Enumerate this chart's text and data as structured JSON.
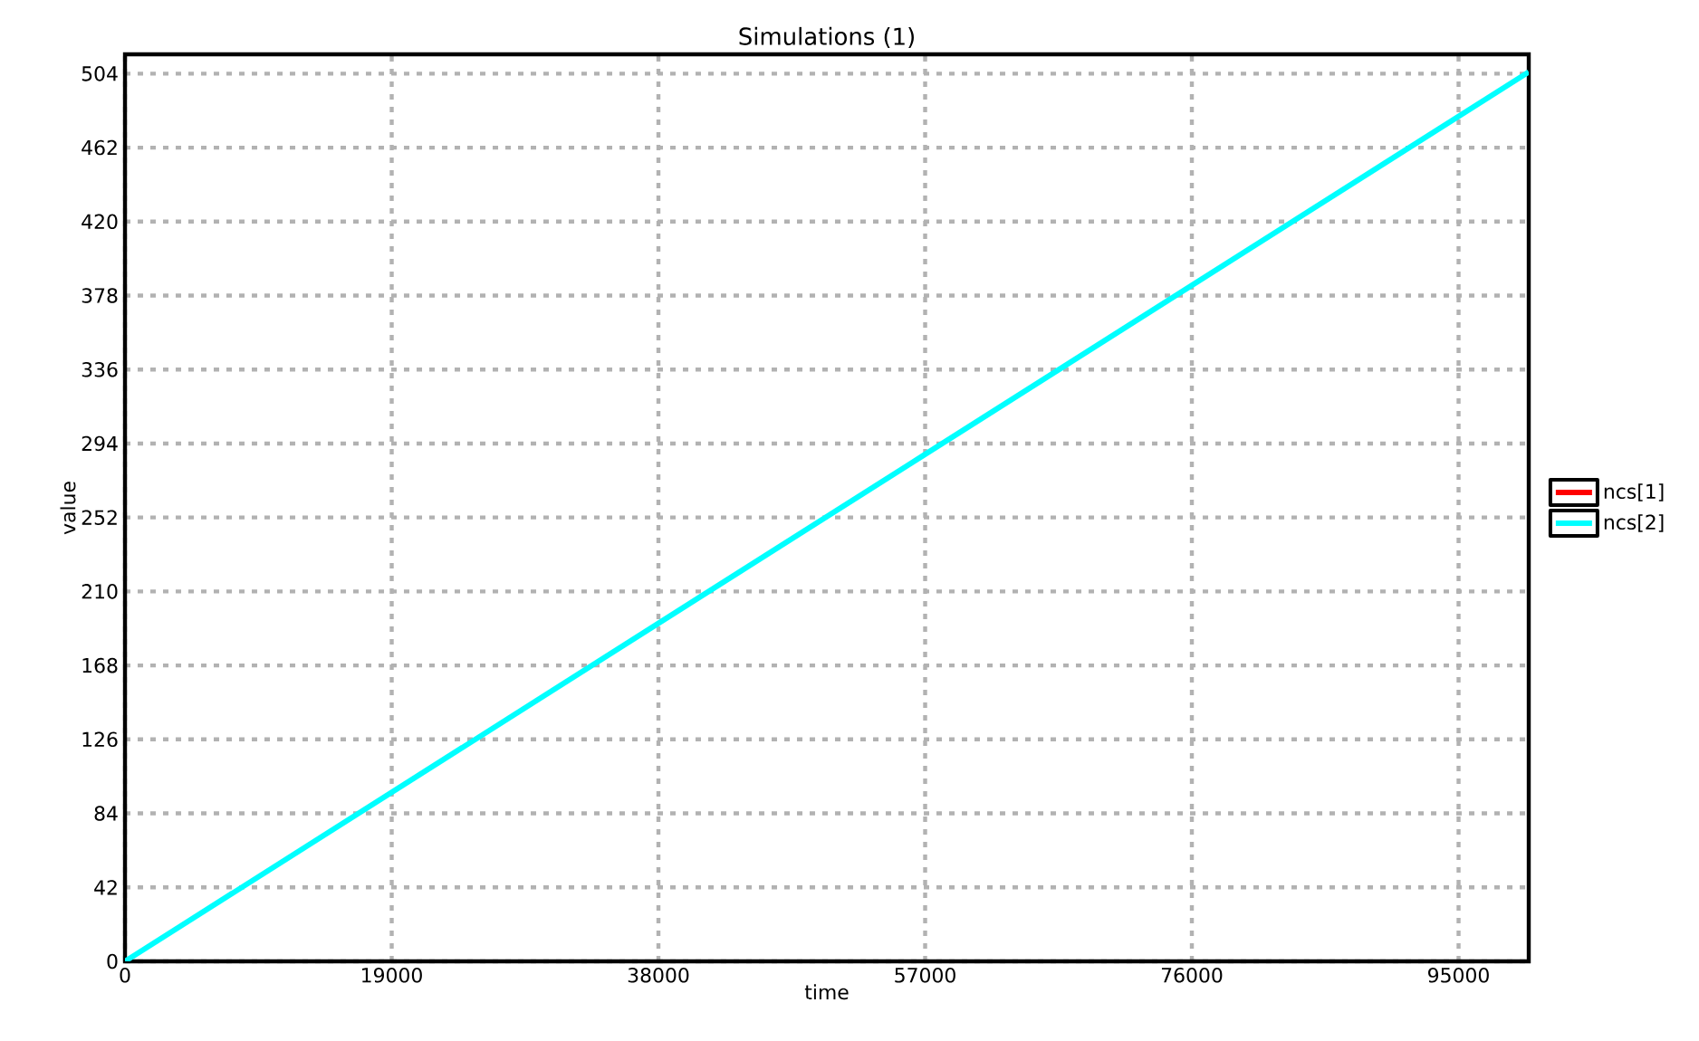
{
  "chart_data": {
    "type": "line",
    "title": "Simulations (1)",
    "xlabel": "time",
    "ylabel": "value",
    "x": [
      0,
      100000
    ],
    "series": [
      {
        "name": "ncs[1]",
        "color": "#ff0000",
        "values": [
          null,
          null
        ]
      },
      {
        "name": "ncs[2]",
        "color": "#00ffff",
        "values": [
          0,
          505
        ]
      }
    ],
    "xlim": [
      0,
      100000
    ],
    "ylim": [
      0,
      515
    ],
    "xticks": [
      0,
      19000,
      38000,
      57000,
      76000,
      95000
    ],
    "yticks": [
      0,
      42,
      84,
      126,
      168,
      210,
      252,
      294,
      336,
      378,
      420,
      462,
      504
    ],
    "grid": true,
    "legend": "right",
    "line_style": "solid",
    "marker": "none"
  }
}
